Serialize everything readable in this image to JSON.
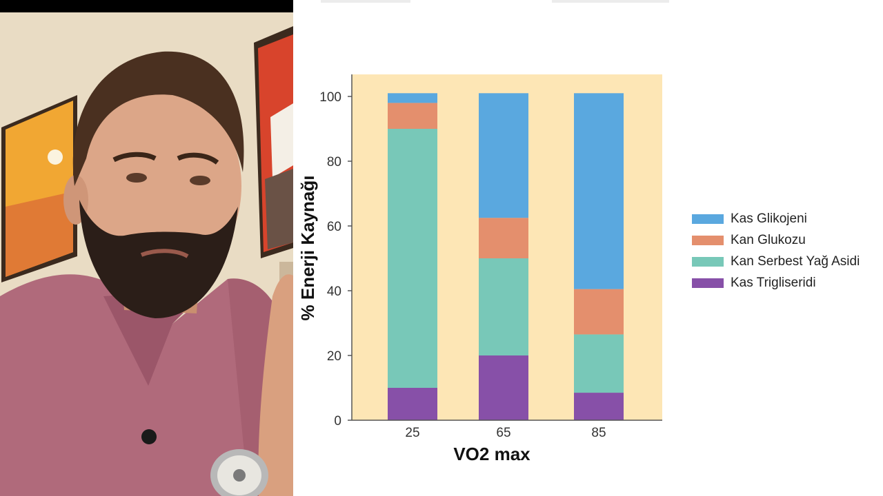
{
  "chart_data": {
    "type": "bar",
    "stacked": true,
    "categories": [
      "25",
      "65",
      "85"
    ],
    "series": [
      {
        "name": "Kas Trigliseridi",
        "color": "#8750a8",
        "values": [
          10,
          20,
          8.5
        ]
      },
      {
        "name": "Kan Serbest Yağ Asidi",
        "color": "#78c8b8",
        "values": [
          80,
          30,
          18
        ]
      },
      {
        "name": "Kan Glukozu",
        "color": "#e48f6d",
        "values": [
          8,
          12.5,
          14
        ]
      },
      {
        "name": "Kas Glikojeni",
        "color": "#5aa8df",
        "values": [
          3,
          38.5,
          60.5
        ]
      }
    ],
    "legend_order": [
      "Kas Glikojeni",
      "Kan Glukozu",
      "Kan Serbest Yağ Asidi",
      "Kas Trigliseridi"
    ],
    "xlabel": "VO2 max",
    "ylabel": "% Enerji Kaynağı",
    "ylim": [
      0,
      100
    ],
    "yticks": [
      0,
      20,
      40,
      60,
      80,
      100
    ],
    "legend_position": "right",
    "plot_background": "#fde6b5",
    "grid": false
  }
}
